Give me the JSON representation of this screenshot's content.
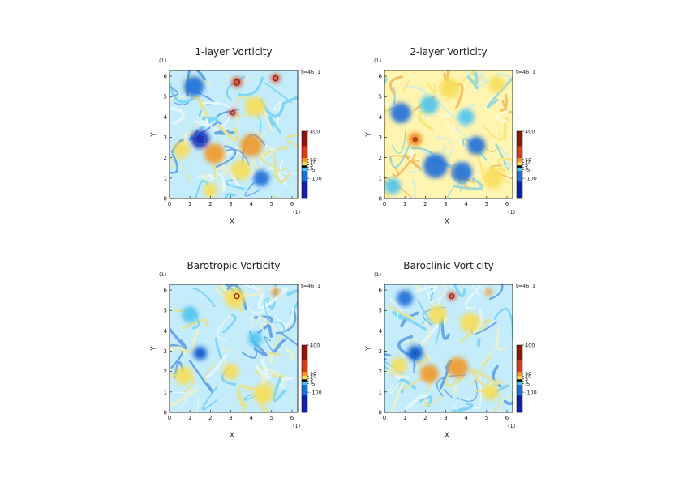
{
  "figure": {
    "colorbar_labels": [
      "400",
      "50",
      "10",
      "5",
      "1",
      "-5",
      "-100"
    ],
    "palette": {
      "deep_blue": "#1020a8",
      "blue": "#1e6ed8",
      "cyan": "#4fc4f0",
      "pale_cyan": "#c4ecfa",
      "white": "#ffffff",
      "pale_yellow": "#fff4b0",
      "yellow": "#f7de5a",
      "orange": "#ef9a2a",
      "red": "#d83a1c",
      "dark_red": "#8e1508",
      "black": "#000000"
    }
  },
  "chart_data": [
    {
      "type": "heatmap",
      "title": "1-layer Vorticity",
      "xlabel": "X",
      "ylabel": "Y",
      "x_unit": "(1)",
      "y_unit": "(1)",
      "time_label": "t=46",
      "time_unit": "1",
      "xlim": [
        0,
        6.28
      ],
      "ylim": [
        0,
        6.28
      ],
      "xticks": [
        "0",
        "1",
        "2",
        "3",
        "4",
        "5",
        "6"
      ],
      "yticks": [
        "0",
        "1",
        "2",
        "3",
        "4",
        "5",
        "6"
      ],
      "background": "pale_cyan",
      "features": [
        {
          "x": 1.5,
          "y": 2.9,
          "r": 0.45,
          "value": "deep_blue"
        },
        {
          "x": 3.3,
          "y": 5.7,
          "r": 0.25,
          "value": "red"
        },
        {
          "x": 5.2,
          "y": 5.9,
          "r": 0.22,
          "value": "red"
        },
        {
          "x": 3.1,
          "y": 4.2,
          "r": 0.18,
          "value": "red"
        },
        {
          "x": 4.0,
          "y": 2.6,
          "r": 0.55,
          "value": "orange"
        },
        {
          "x": 2.2,
          "y": 2.2,
          "r": 0.5,
          "value": "orange"
        },
        {
          "x": 3.5,
          "y": 1.4,
          "r": 0.5,
          "value": "yellow"
        },
        {
          "x": 0.6,
          "y": 2.4,
          "r": 0.4,
          "value": "yellow"
        },
        {
          "x": 4.2,
          "y": 4.5,
          "r": 0.5,
          "value": "yellow"
        },
        {
          "x": 1.2,
          "y": 5.5,
          "r": 0.5,
          "value": "blue"
        },
        {
          "x": 4.5,
          "y": 1.0,
          "r": 0.4,
          "value": "blue"
        },
        {
          "x": 2.0,
          "y": 0.4,
          "r": 0.35,
          "value": "yellow"
        }
      ]
    },
    {
      "type": "heatmap",
      "title": "2-layer Vorticity",
      "xlabel": "X",
      "ylabel": "Y",
      "x_unit": "(1)",
      "y_unit": "(1)",
      "time_label": "t=46",
      "time_unit": "1",
      "xlim": [
        0,
        6.28
      ],
      "ylim": [
        0,
        6.28
      ],
      "xticks": [
        "0",
        "1",
        "2",
        "3",
        "4",
        "5",
        "6"
      ],
      "yticks": [
        "0",
        "1",
        "2",
        "3",
        "4",
        "5",
        "6"
      ],
      "background": "pale_yellow",
      "features": [
        {
          "x": 1.5,
          "y": 2.9,
          "r": 0.35,
          "value": "orange"
        },
        {
          "x": 1.5,
          "y": 2.9,
          "r": 0.15,
          "value": "red"
        },
        {
          "x": 2.5,
          "y": 1.6,
          "r": 0.6,
          "value": "blue"
        },
        {
          "x": 3.8,
          "y": 1.3,
          "r": 0.5,
          "value": "blue"
        },
        {
          "x": 4.5,
          "y": 2.6,
          "r": 0.45,
          "value": "blue"
        },
        {
          "x": 0.8,
          "y": 4.2,
          "r": 0.5,
          "value": "blue"
        },
        {
          "x": 2.2,
          "y": 4.6,
          "r": 0.45,
          "value": "cyan"
        },
        {
          "x": 4.0,
          "y": 4.0,
          "r": 0.4,
          "value": "cyan"
        },
        {
          "x": 5.5,
          "y": 5.6,
          "r": 0.4,
          "value": "yellow"
        },
        {
          "x": 3.2,
          "y": 5.4,
          "r": 0.5,
          "value": "yellow"
        },
        {
          "x": 5.3,
          "y": 1.0,
          "r": 0.5,
          "value": "yellow"
        },
        {
          "x": 0.4,
          "y": 0.6,
          "r": 0.4,
          "value": "cyan"
        }
      ]
    },
    {
      "type": "heatmap",
      "title": "Barotropic Vorticity",
      "xlabel": "X",
      "ylabel": "Y",
      "x_unit": "(1)",
      "y_unit": "(1)",
      "time_label": "t=46",
      "time_unit": "1",
      "xlim": [
        0,
        6.28
      ],
      "ylim": [
        0,
        6.28
      ],
      "xticks": [
        "0",
        "1",
        "2",
        "3",
        "4",
        "5",
        "6"
      ],
      "yticks": [
        "0",
        "1",
        "2",
        "3",
        "4",
        "5",
        "6"
      ],
      "background": "pale_cyan",
      "features": [
        {
          "x": 1.5,
          "y": 2.9,
          "r": 0.35,
          "value": "blue"
        },
        {
          "x": 1.5,
          "y": 2.9,
          "r": 0.15,
          "value": "deep_blue"
        },
        {
          "x": 3.3,
          "y": 5.7,
          "r": 0.22,
          "value": "red"
        },
        {
          "x": 5.2,
          "y": 5.9,
          "r": 0.2,
          "value": "orange"
        },
        {
          "x": 3.2,
          "y": 5.6,
          "r": 0.5,
          "value": "yellow"
        },
        {
          "x": 0.7,
          "y": 1.8,
          "r": 0.45,
          "value": "yellow"
        },
        {
          "x": 4.6,
          "y": 0.9,
          "r": 0.5,
          "value": "yellow"
        },
        {
          "x": 3.0,
          "y": 2.0,
          "r": 0.4,
          "value": "yellow"
        },
        {
          "x": 4.2,
          "y": 3.6,
          "r": 0.35,
          "value": "cyan"
        },
        {
          "x": 1.0,
          "y": 4.8,
          "r": 0.4,
          "value": "cyan"
        }
      ]
    },
    {
      "type": "heatmap",
      "title": "Baroclinic Vorticity",
      "xlabel": "X",
      "ylabel": "Y",
      "x_unit": "(1)",
      "y_unit": "(1)",
      "time_label": "t=46",
      "time_unit": "1",
      "xlim": [
        0,
        6.28
      ],
      "ylim": [
        0,
        6.28
      ],
      "xticks": [
        "0",
        "1",
        "2",
        "3",
        "4",
        "5",
        "6"
      ],
      "yticks": [
        "0",
        "1",
        "2",
        "3",
        "4",
        "5",
        "6"
      ],
      "background": "pale_cyan",
      "features": [
        {
          "x": 1.5,
          "y": 2.9,
          "r": 0.4,
          "value": "blue"
        },
        {
          "x": 1.5,
          "y": 2.9,
          "r": 0.18,
          "value": "deep_blue"
        },
        {
          "x": 3.3,
          "y": 5.7,
          "r": 0.2,
          "value": "red"
        },
        {
          "x": 5.1,
          "y": 5.9,
          "r": 0.18,
          "value": "orange"
        },
        {
          "x": 3.6,
          "y": 2.2,
          "r": 0.5,
          "value": "orange"
        },
        {
          "x": 2.2,
          "y": 1.9,
          "r": 0.45,
          "value": "orange"
        },
        {
          "x": 4.2,
          "y": 4.4,
          "r": 0.5,
          "value": "yellow"
        },
        {
          "x": 0.7,
          "y": 2.3,
          "r": 0.4,
          "value": "yellow"
        },
        {
          "x": 2.6,
          "y": 4.8,
          "r": 0.45,
          "value": "yellow"
        },
        {
          "x": 1.0,
          "y": 5.6,
          "r": 0.4,
          "value": "blue"
        },
        {
          "x": 5.2,
          "y": 1.0,
          "r": 0.4,
          "value": "yellow"
        }
      ]
    }
  ]
}
